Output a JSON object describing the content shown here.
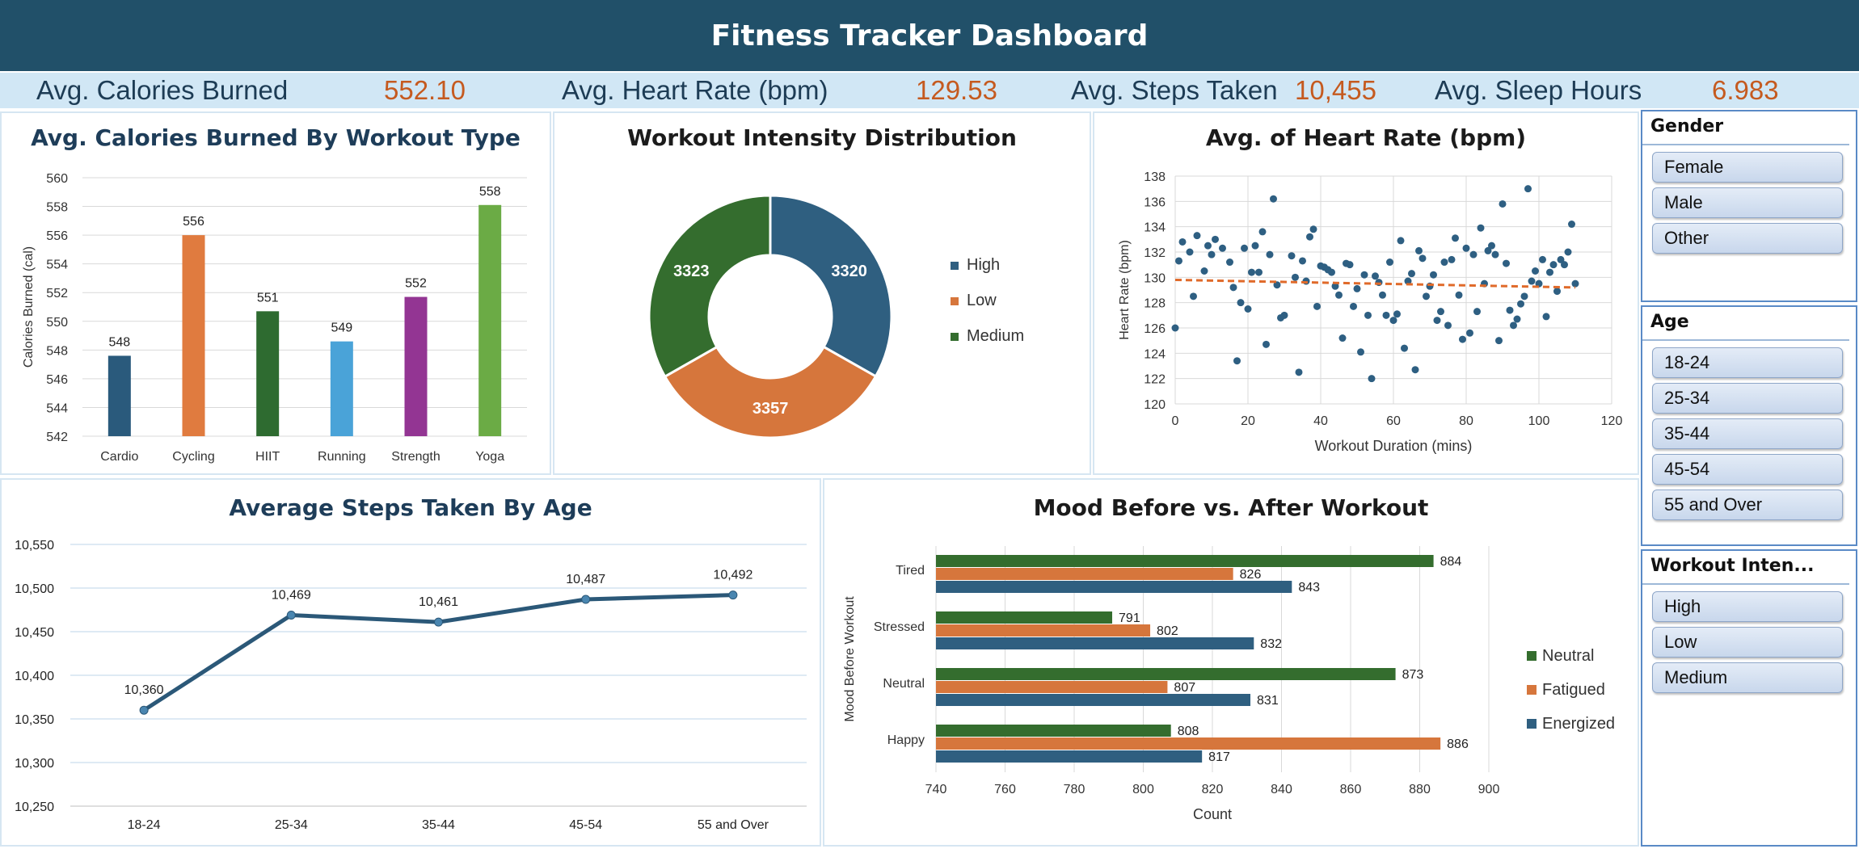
{
  "dashboard": {
    "title": "Fitness Tracker Dashboard"
  },
  "kpis": [
    {
      "label": "Avg. Calories Burned",
      "value": "552.10"
    },
    {
      "label": "Avg. Heart Rate (bpm)",
      "value": "129.53"
    },
    {
      "label": "Avg. Steps Taken",
      "value": "10,455"
    },
    {
      "label": "Avg. Sleep Hours",
      "value": "6.983"
    }
  ],
  "colors": {
    "banner": "#215069",
    "kpi_strip": "#d1e7f5",
    "kpi_value": "#c55a1f",
    "high": "#2f5f80",
    "low": "#d6763c",
    "medium": "#346d2e"
  },
  "slicers": [
    {
      "title": "Gender",
      "items": [
        "Female",
        "Male",
        "Other"
      ]
    },
    {
      "title": "Age",
      "items": [
        "18-24",
        "25-34",
        "35-44",
        "45-54",
        "55 and Over"
      ]
    },
    {
      "title": "Workout Inten...",
      "items": [
        "High",
        "Low",
        "Medium"
      ]
    }
  ],
  "chart_data": [
    {
      "type": "bar",
      "title": "Avg. Calories Burned By Workout Type",
      "ylabel": "Calories Burned (cal)",
      "xlabel": "",
      "categories": [
        "Cardio",
        "Cycling",
        "HIIT",
        "Running",
        "Strength",
        "Yoga"
      ],
      "values": [
        547.6,
        556.0,
        550.7,
        548.6,
        551.7,
        558.1
      ],
      "data_labels": [
        "548",
        "556",
        "551",
        "549",
        "552",
        "558"
      ],
      "bar_colors": [
        "#2a5a7c",
        "#e07b3f",
        "#2e6b30",
        "#4aa3d8",
        "#933593",
        "#6bab45"
      ],
      "ylim": [
        542,
        560
      ],
      "yticks": [
        "542",
        "544",
        "546",
        "548",
        "550",
        "552",
        "554",
        "556",
        "558",
        "560"
      ],
      "grid": true
    },
    {
      "type": "pie",
      "title": "Workout Intensity Distribution",
      "categories": [
        "High",
        "Low",
        "Medium"
      ],
      "values": [
        3320,
        3357,
        3323
      ],
      "labels": [
        "3320",
        "3357",
        "3323"
      ],
      "colors": [
        "#2f5f80",
        "#d6763c",
        "#346d2e"
      ],
      "legend": "right"
    },
    {
      "type": "scatter",
      "title": "Avg. of Heart Rate (bpm)",
      "xlabel": "Workout Duration (mins)",
      "ylabel": "Heart Rate (bpm)",
      "xlim": [
        0,
        120
      ],
      "ylim": [
        120,
        138
      ],
      "xticks": [
        "0",
        "20",
        "40",
        "60",
        "80",
        "100",
        "120"
      ],
      "yticks": [
        "120",
        "122",
        "124",
        "126",
        "128",
        "130",
        "132",
        "134",
        "136",
        "138"
      ],
      "trendline": {
        "x": [
          0,
          110
        ],
        "y": [
          129.8,
          129.2
        ]
      },
      "points": [
        [
          0,
          126
        ],
        [
          1,
          131.3
        ],
        [
          2,
          132.8
        ],
        [
          4,
          132
        ],
        [
          5,
          128.5
        ],
        [
          6,
          133.3
        ],
        [
          8,
          130.5
        ],
        [
          9,
          132.5
        ],
        [
          10,
          131.8
        ],
        [
          11,
          133
        ],
        [
          13,
          132.3
        ],
        [
          15,
          131.2
        ],
        [
          16,
          129.2
        ],
        [
          17,
          123.4
        ],
        [
          18,
          128
        ],
        [
          19,
          132.3
        ],
        [
          20,
          127.5
        ],
        [
          21,
          130.4
        ],
        [
          22,
          132.5
        ],
        [
          23,
          130.4
        ],
        [
          24,
          133.6
        ],
        [
          25,
          124.7
        ],
        [
          26,
          131.8
        ],
        [
          27,
          136.2
        ],
        [
          28,
          129.4
        ],
        [
          29,
          126.8
        ],
        [
          30,
          127
        ],
        [
          32,
          131.7
        ],
        [
          33,
          130
        ],
        [
          34,
          122.5
        ],
        [
          35,
          131.3
        ],
        [
          36,
          129.7
        ],
        [
          37,
          133.2
        ],
        [
          38,
          133.8
        ],
        [
          39,
          127.7
        ],
        [
          40,
          130.9
        ],
        [
          41,
          130.8
        ],
        [
          42,
          130.6
        ],
        [
          43,
          130.4
        ],
        [
          44,
          129.3
        ],
        [
          45,
          128.6
        ],
        [
          46,
          125.2
        ],
        [
          47,
          131.1
        ],
        [
          48,
          131
        ],
        [
          49,
          127.7
        ],
        [
          50,
          129.1
        ],
        [
          51,
          124.1
        ],
        [
          52,
          130.2
        ],
        [
          53,
          127
        ],
        [
          54,
          122
        ],
        [
          55,
          130.1
        ],
        [
          56,
          129.6
        ],
        [
          57,
          128.6
        ],
        [
          58,
          127
        ],
        [
          59,
          131.2
        ],
        [
          60,
          126.6
        ],
        [
          61,
          127.1
        ],
        [
          62,
          132.9
        ],
        [
          63,
          124.4
        ],
        [
          64,
          129.7
        ],
        [
          65,
          130.3
        ],
        [
          66,
          122.7
        ],
        [
          67,
          132.1
        ],
        [
          68,
          131.5
        ],
        [
          69,
          128.5
        ],
        [
          70,
          129.3
        ],
        [
          71,
          130.2
        ],
        [
          72,
          126.6
        ],
        [
          73,
          127.3
        ],
        [
          74,
          131.2
        ],
        [
          75,
          126.2
        ],
        [
          76,
          131.4
        ],
        [
          77,
          133.1
        ],
        [
          78,
          128.6
        ],
        [
          79,
          125.1
        ],
        [
          80,
          132.3
        ],
        [
          81,
          125.6
        ],
        [
          82,
          131.8
        ],
        [
          83,
          127.3
        ],
        [
          84,
          133.9
        ],
        [
          85,
          129.5
        ],
        [
          86,
          132.1
        ],
        [
          87,
          132.5
        ],
        [
          88,
          131.8
        ],
        [
          89,
          125
        ],
        [
          90,
          135.8
        ],
        [
          91,
          131.1
        ],
        [
          92,
          127.4
        ],
        [
          93,
          126.2
        ],
        [
          94,
          126.7
        ],
        [
          95,
          127.9
        ],
        [
          96,
          128.5
        ],
        [
          97,
          137
        ],
        [
          98,
          129.7
        ],
        [
          99,
          130.5
        ],
        [
          100,
          129.5
        ],
        [
          101,
          131.4
        ],
        [
          102,
          126.9
        ],
        [
          103,
          130.4
        ],
        [
          104,
          131
        ],
        [
          105,
          128.9
        ],
        [
          106,
          131.4
        ],
        [
          107,
          131
        ],
        [
          108,
          132
        ],
        [
          109,
          134.2
        ],
        [
          110,
          129.5
        ]
      ]
    },
    {
      "type": "line",
      "title": "Average Steps Taken By Age",
      "categories": [
        "18-24",
        "25-34",
        "35-44",
        "45-54",
        "55 and Over"
      ],
      "values": [
        10360,
        10469,
        10461,
        10487,
        10492
      ],
      "data_labels": [
        "10,360",
        "10,469",
        "10,461",
        "10,487",
        "10,492"
      ],
      "ylim": [
        10250,
        10550
      ],
      "yticks": [
        "10,250",
        "10,300",
        "10,350",
        "10,400",
        "10,450",
        "10,500",
        "10,550"
      ],
      "grid": true
    },
    {
      "type": "bar",
      "orientation": "horizontal",
      "title": "Mood Before vs. After Workout",
      "xlabel": "Count",
      "ylabel": "Mood Before Workout",
      "categories": [
        "Tired",
        "Stressed",
        "Neutral",
        "Happy"
      ],
      "series": [
        {
          "name": "Neutral",
          "values": [
            884,
            791,
            873,
            808
          ],
          "color": "#346d2e"
        },
        {
          "name": "Fatigued",
          "values": [
            826,
            802,
            807,
            886
          ],
          "color": "#d6763c"
        },
        {
          "name": "Energized",
          "values": [
            843,
            832,
            831,
            817
          ],
          "color": "#2f5f80"
        }
      ],
      "xlim": [
        740,
        900
      ],
      "xticks": [
        "740",
        "760",
        "780",
        "800",
        "820",
        "840",
        "860",
        "880",
        "900"
      ],
      "legend": "right",
      "grid": true
    }
  ]
}
